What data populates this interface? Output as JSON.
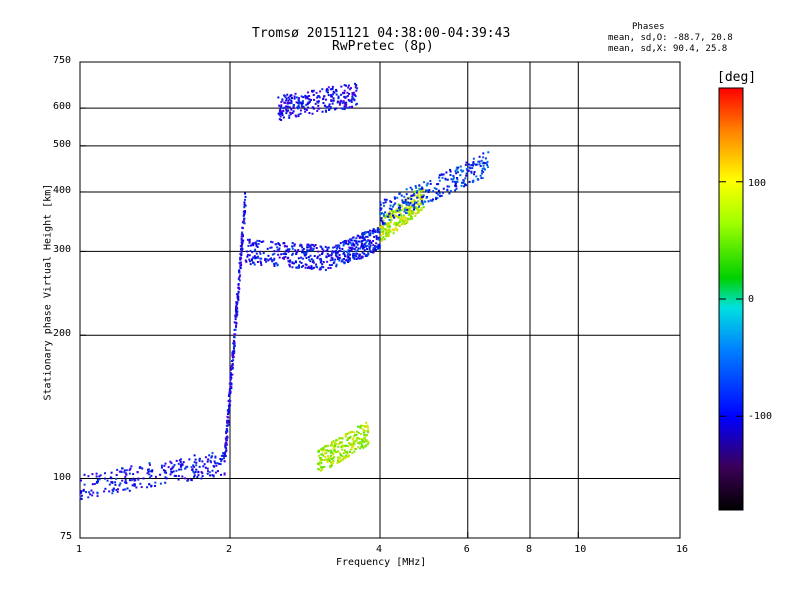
{
  "chart_data": {
    "type": "scatter",
    "title": "Tromsø 20151121 04:38:00-04:39:43",
    "subtitle": "RwPretec (8p)",
    "xlabel": "Frequency [MHz]",
    "ylabel": "Stationary phase Virtual Height [km]",
    "xscale": "log",
    "yscale": "log",
    "xlim": [
      1,
      16
    ],
    "ylim": [
      75,
      750
    ],
    "xticks": [
      1,
      2,
      4,
      6,
      8,
      10,
      16
    ],
    "yticks": [
      75,
      100,
      200,
      300,
      400,
      500,
      600,
      750
    ],
    "xtick_labels": [
      "1",
      "2",
      "4",
      "6",
      "8",
      "10",
      "16"
    ],
    "ytick_labels": [
      "75",
      "100",
      "200",
      "300",
      "400",
      "500",
      "600",
      "750"
    ],
    "grid": true,
    "stats": {
      "heading": "Phases",
      "line_o": "mean, sd,O: -88.7, 20.8",
      "line_x": "mean, sd,X:  90.4, 25.8"
    },
    "colorbar": {
      "label": "[deg]",
      "range": [
        -180,
        180
      ],
      "ticks": [
        100,
        0,
        -100
      ],
      "tick_labels": [
        "100",
        "0",
        "-100"
      ]
    },
    "traces": [
      {
        "mode": "O",
        "f_start": 1.0,
        "f_end": 1.95,
        "h_start": 96,
        "h_end": 108,
        "phase": -95
      },
      {
        "mode": "O",
        "f_start": 1.95,
        "f_end": 2.15,
        "h_start": 108,
        "h_end": 390,
        "phase": -100
      },
      {
        "mode": "O",
        "f_start": 2.15,
        "f_end": 3.2,
        "h_start": 300,
        "h_end": 290,
        "phase": -95
      },
      {
        "mode": "O",
        "f_start": 3.2,
        "f_end": 4.0,
        "h_start": 290,
        "h_end": 320,
        "phase": -90
      },
      {
        "mode": "X",
        "f_start": 4.0,
        "f_end": 4.9,
        "h_start": 330,
        "h_end": 390,
        "phase": 95
      },
      {
        "mode": "O",
        "f_start": 4.0,
        "f_end": 6.6,
        "h_start": 360,
        "h_end": 460,
        "phase": -80
      },
      {
        "mode": "O",
        "f_start": 2.5,
        "f_end": 3.6,
        "h_start": 600,
        "h_end": 640,
        "phase": -100
      },
      {
        "mode": "X",
        "f_start": 3.0,
        "f_end": 3.8,
        "h_start": 108,
        "h_end": 125,
        "phase": 90
      }
    ]
  }
}
